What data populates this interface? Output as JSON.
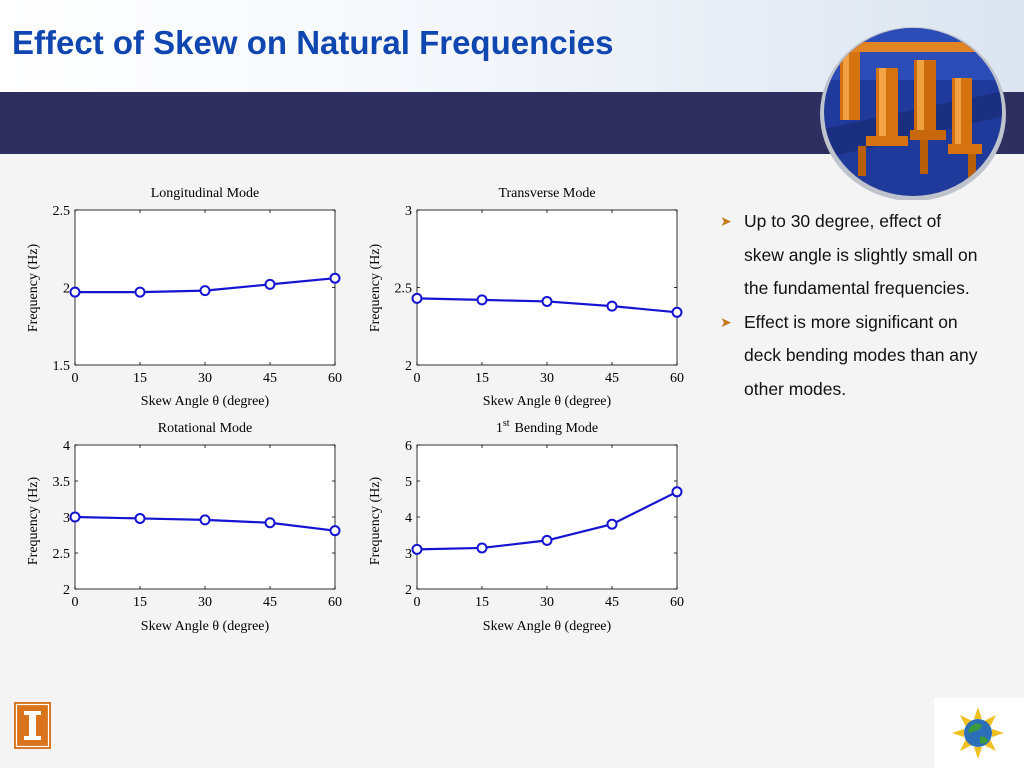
{
  "slide": {
    "title": "Effect of Skew on Natural Frequencies",
    "bullets": [
      "Up to 30 degree, effect of skew angle is slightly small on the fundamental frequencies.",
      "Effect is more significant on deck bending modes than any other modes."
    ]
  },
  "colors": {
    "title": "#1046b0",
    "band": "#2e2f5e",
    "series": "#1414d2",
    "bullet_arrow": "#c67a1e"
  },
  "icons": [
    "bridge-model-photo",
    "university-i-logo",
    "globe-sun-logo",
    "bullet-arrow-icon"
  ],
  "chart_data": [
    {
      "type": "line",
      "title": "Longitudinal Mode",
      "xlabel": "Skew Angle θ (degree)",
      "ylabel": "Frequency (Hz)",
      "x": [
        0,
        15,
        30,
        45,
        60
      ],
      "values": [
        1.97,
        1.97,
        1.98,
        2.02,
        2.06
      ],
      "xlim": [
        0,
        60
      ],
      "ylim": [
        1.5,
        2.5
      ],
      "xticks": [
        0,
        15,
        30,
        45,
        60
      ],
      "yticks": [
        1.5,
        2,
        2.5
      ],
      "marker": "circle",
      "grid": false
    },
    {
      "type": "line",
      "title": "Transverse Mode",
      "xlabel": "Skew Angle θ (degree)",
      "ylabel": "Frequency (Hz)",
      "x": [
        0,
        15,
        30,
        45,
        60
      ],
      "values": [
        2.43,
        2.42,
        2.41,
        2.38,
        2.34
      ],
      "xlim": [
        0,
        60
      ],
      "ylim": [
        2,
        3
      ],
      "xticks": [
        0,
        15,
        30,
        45,
        60
      ],
      "yticks": [
        2,
        2.5,
        3
      ],
      "marker": "circle",
      "grid": false
    },
    {
      "type": "line",
      "title": "Rotational Mode",
      "xlabel": "Skew Angle θ (degree)",
      "ylabel": "Frequency (Hz)",
      "x": [
        0,
        15,
        30,
        45,
        60
      ],
      "values": [
        3.0,
        2.98,
        2.96,
        2.92,
        2.81
      ],
      "xlim": [
        0,
        60
      ],
      "ylim": [
        2,
        4
      ],
      "xticks": [
        0,
        15,
        30,
        45,
        60
      ],
      "yticks": [
        2,
        2.5,
        3,
        3.5,
        4
      ],
      "marker": "circle",
      "grid": false
    },
    {
      "type": "line",
      "title": "Bending Mode",
      "title_prefix": "1",
      "title_sup": "st",
      "xlabel": "Skew Angle θ (degree)",
      "ylabel": "Frequency (Hz)",
      "x": [
        0,
        15,
        30,
        45,
        60
      ],
      "values": [
        3.1,
        3.14,
        3.35,
        3.8,
        4.7
      ],
      "xlim": [
        0,
        60
      ],
      "ylim": [
        2,
        6
      ],
      "xticks": [
        0,
        15,
        30,
        45,
        60
      ],
      "yticks": [
        2,
        3,
        4,
        5,
        6
      ],
      "marker": "circle",
      "grid": false
    }
  ]
}
